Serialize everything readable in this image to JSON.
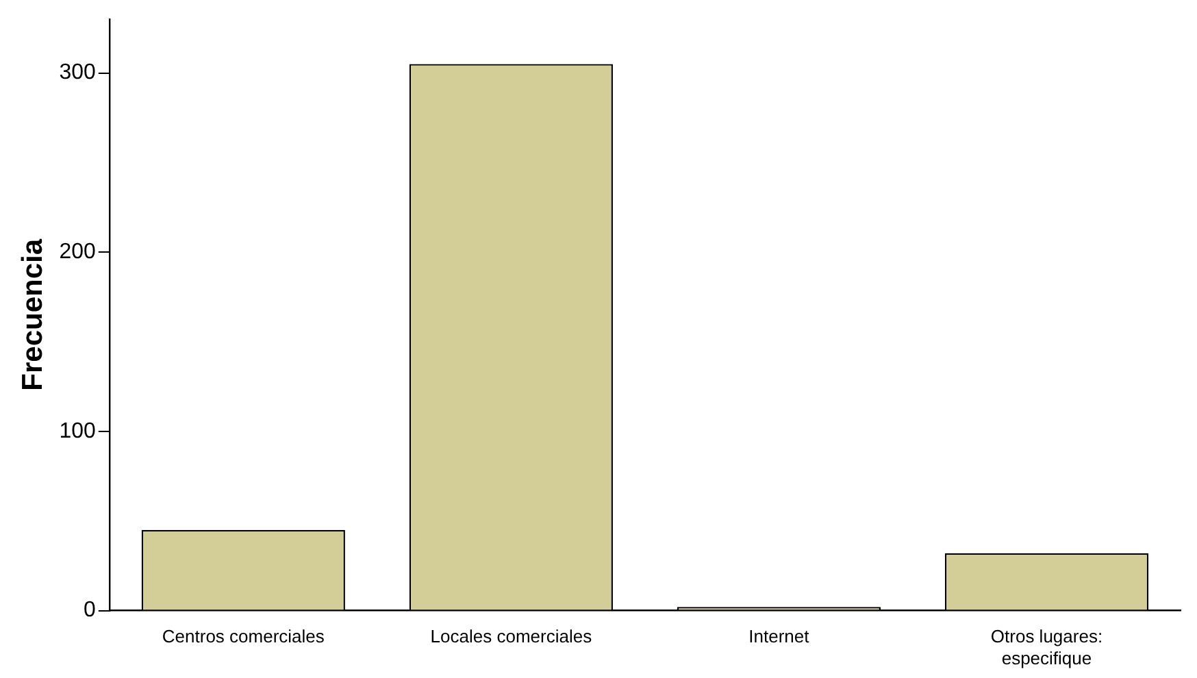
{
  "chart_data": {
    "type": "bar",
    "ylabel": "Frecuencia",
    "categories": [
      "Centros comerciales",
      "Locales comerciales",
      "Internet",
      "Otros lugares: especifique"
    ],
    "values": [
      45,
      305,
      2,
      32
    ],
    "color": "#d3ce98",
    "ylim": [
      0,
      330
    ],
    "yticks": [
      0,
      100,
      200,
      300
    ],
    "grid": false,
    "legend": false
  }
}
